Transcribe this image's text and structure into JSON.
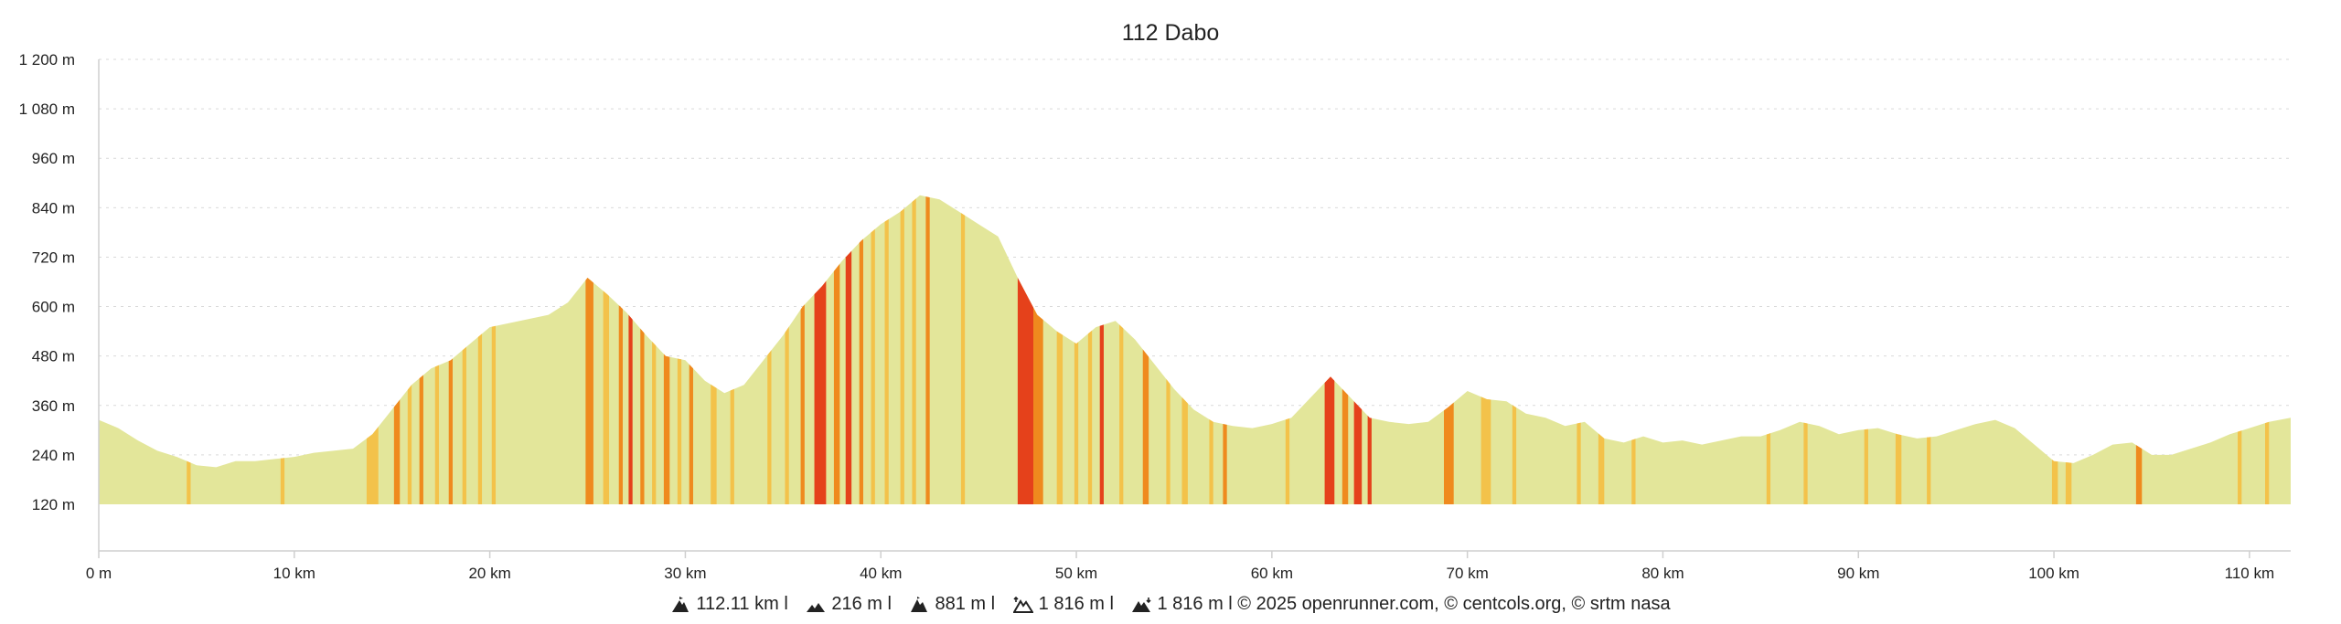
{
  "chart_data": {
    "type": "area",
    "title": "112 Dabo",
    "xlabel": "",
    "ylabel": "",
    "xlim": [
      0,
      112.11
    ],
    "ylim": [
      120,
      1200
    ],
    "y_ticks": [
      "1 200 m",
      "1 080 m",
      "960 m",
      "840 m",
      "720 m",
      "600 m",
      "480 m",
      "360 m",
      "240 m",
      "120 m"
    ],
    "y_tick_values": [
      1200,
      1080,
      960,
      840,
      720,
      600,
      480,
      360,
      240,
      120
    ],
    "x_ticks": [
      "0 m",
      "10 km",
      "20 km",
      "30 km",
      "40 km",
      "50 km",
      "60 km",
      "70 km",
      "80 km",
      "90 km",
      "100 km",
      "110 km"
    ],
    "x_tick_values": [
      0,
      10,
      20,
      30,
      40,
      50,
      60,
      70,
      80,
      90,
      100,
      110
    ],
    "grid": true,
    "legend": "none",
    "colors": {
      "base": "#e3e69a",
      "moderate": "#f3c24a",
      "steep": "#ef8a1e",
      "very_steep": "#e5411b"
    },
    "series": [
      {
        "x": [
          0,
          1,
          2,
          3,
          4,
          5,
          6,
          7,
          8,
          9,
          10,
          11,
          12,
          13,
          14,
          15,
          16,
          17,
          18,
          19,
          20,
          21,
          22,
          23,
          24,
          25,
          26,
          27,
          28,
          29,
          30,
          31,
          32,
          33,
          34,
          35,
          36,
          37,
          38,
          39,
          40,
          41,
          42,
          43,
          44,
          45,
          46,
          47,
          48,
          49,
          50,
          51,
          52,
          53,
          54,
          55,
          56,
          57,
          58,
          59,
          60,
          61,
          62,
          63,
          64,
          65,
          66,
          67,
          68,
          69,
          70,
          71,
          72,
          73,
          74,
          75,
          76,
          77,
          78,
          79,
          80,
          81,
          82,
          83,
          84,
          85,
          86,
          87,
          88,
          89,
          90,
          91,
          92,
          93,
          94,
          95,
          96,
          97,
          98,
          99,
          100,
          101,
          102,
          103,
          104,
          105,
          106,
          107,
          108,
          109,
          110,
          111,
          112.11
        ],
        "y": [
          325,
          305,
          275,
          250,
          235,
          215,
          210,
          225,
          225,
          230,
          235,
          245,
          250,
          255,
          290,
          350,
          410,
          450,
          470,
          510,
          550,
          560,
          570,
          580,
          610,
          670,
          630,
          585,
          530,
          480,
          470,
          420,
          390,
          410,
          470,
          530,
          600,
          650,
          710,
          760,
          800,
          830,
          870,
          860,
          830,
          800,
          770,
          670,
          580,
          540,
          510,
          550,
          565,
          520,
          460,
          400,
          350,
          320,
          310,
          305,
          315,
          330,
          380,
          430,
          380,
          330,
          320,
          315,
          320,
          355,
          395,
          375,
          370,
          340,
          330,
          310,
          320,
          280,
          270,
          285,
          270,
          275,
          265,
          275,
          285,
          285,
          300,
          320,
          310,
          290,
          300,
          305,
          290,
          280,
          285,
          300,
          315,
          325,
          305,
          265,
          225,
          220,
          240,
          265,
          270,
          240,
          240,
          255,
          270,
          290,
          305,
          320,
          330
        ]
      }
    ],
    "gradient_bands": [
      [
        4.5,
        4.7,
        "moderate"
      ],
      [
        9.3,
        9.5,
        "moderate"
      ],
      [
        13.7,
        14.3,
        "moderate"
      ],
      [
        15.1,
        15.4,
        "steep"
      ],
      [
        15.8,
        16,
        "moderate"
      ],
      [
        16.4,
        16.6,
        "steep"
      ],
      [
        17.2,
        17.4,
        "moderate"
      ],
      [
        17.9,
        18.1,
        "steep"
      ],
      [
        18.6,
        18.8,
        "moderate"
      ],
      [
        19.4,
        19.6,
        "moderate"
      ],
      [
        20.1,
        20.3,
        "moderate"
      ],
      [
        24.9,
        25.3,
        "steep"
      ],
      [
        25.8,
        26.1,
        "moderate"
      ],
      [
        26.6,
        26.8,
        "steep"
      ],
      [
        27.1,
        27.3,
        "very_steep"
      ],
      [
        27.7,
        27.9,
        "steep"
      ],
      [
        28.3,
        28.5,
        "moderate"
      ],
      [
        28.9,
        29.2,
        "steep"
      ],
      [
        29.6,
        29.8,
        "moderate"
      ],
      [
        30.2,
        30.4,
        "steep"
      ],
      [
        31.3,
        31.6,
        "moderate"
      ],
      [
        32.3,
        32.5,
        "moderate"
      ],
      [
        34.2,
        34.4,
        "moderate"
      ],
      [
        35.1,
        35.3,
        "moderate"
      ],
      [
        35.9,
        36.1,
        "steep"
      ],
      [
        36.6,
        37.2,
        "very_steep"
      ],
      [
        37.6,
        37.9,
        "steep"
      ],
      [
        38.2,
        38.5,
        "very_steep"
      ],
      [
        38.9,
        39.1,
        "steep"
      ],
      [
        39.5,
        39.7,
        "moderate"
      ],
      [
        40.2,
        40.4,
        "moderate"
      ],
      [
        41,
        41.2,
        "moderate"
      ],
      [
        41.6,
        41.8,
        "moderate"
      ],
      [
        42.3,
        42.5,
        "steep"
      ],
      [
        44.1,
        44.3,
        "moderate"
      ],
      [
        47,
        47.8,
        "very_steep"
      ],
      [
        47.8,
        48.3,
        "steep"
      ],
      [
        49,
        49.3,
        "moderate"
      ],
      [
        49.9,
        50.1,
        "moderate"
      ],
      [
        50.6,
        50.8,
        "moderate"
      ],
      [
        51.2,
        51.4,
        "very_steep"
      ],
      [
        52.2,
        52.4,
        "moderate"
      ],
      [
        53.4,
        53.7,
        "steep"
      ],
      [
        54.6,
        54.8,
        "moderate"
      ],
      [
        55.4,
        55.7,
        "moderate"
      ],
      [
        56.8,
        57,
        "moderate"
      ],
      [
        57.5,
        57.7,
        "steep"
      ],
      [
        60.7,
        60.9,
        "moderate"
      ],
      [
        62.7,
        63.2,
        "very_steep"
      ],
      [
        63.6,
        63.9,
        "steep"
      ],
      [
        64.2,
        64.6,
        "very_steep"
      ],
      [
        64.9,
        65.1,
        "very_steep"
      ],
      [
        68.8,
        69.3,
        "steep"
      ],
      [
        70.7,
        71.2,
        "moderate"
      ],
      [
        72.3,
        72.5,
        "moderate"
      ],
      [
        75.6,
        75.8,
        "moderate"
      ],
      [
        76.7,
        77,
        "moderate"
      ],
      [
        78.4,
        78.6,
        "moderate"
      ],
      [
        85.3,
        85.5,
        "moderate"
      ],
      [
        87.2,
        87.4,
        "moderate"
      ],
      [
        90.3,
        90.5,
        "moderate"
      ],
      [
        91.9,
        92.2,
        "moderate"
      ],
      [
        93.5,
        93.7,
        "moderate"
      ],
      [
        99.9,
        100.2,
        "moderate"
      ],
      [
        100.6,
        100.9,
        "moderate"
      ],
      [
        104.2,
        104.5,
        "steep"
      ],
      [
        109.4,
        109.6,
        "moderate"
      ],
      [
        110.8,
        111,
        "moderate"
      ]
    ]
  },
  "footer": {
    "distance": "112.11 km",
    "min_alt": "216 m",
    "max_alt": "881 m",
    "ascent": "1 816 m",
    "descent": "1 816 m",
    "credits": "© 2025 openrunner.com, © centcols.org, © srtm nasa",
    "icons": [
      "mountain-peak-icon",
      "low-hills-icon",
      "high-peak-icon",
      "ascent-mountain-icon",
      "descent-mountain-icon"
    ]
  }
}
